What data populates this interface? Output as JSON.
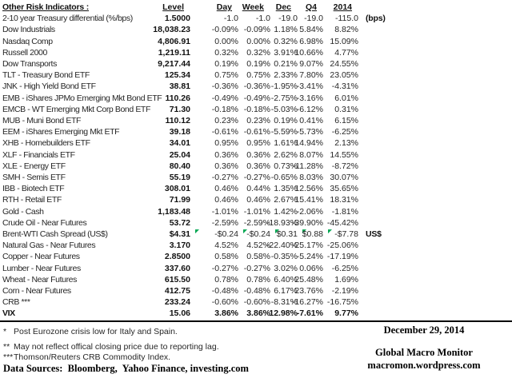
{
  "table": {
    "title": "Other Risk Indicators :",
    "columns": [
      "Level",
      "Day",
      "Week",
      "Dec",
      "Q4",
      "2014"
    ],
    "rows": [
      {
        "name": "2-10 year Treasury differential (%/bps)",
        "level": "1.5000",
        "day": "-1.0",
        "week": "-1.0",
        "dec": "-19.0",
        "q4": "-19.0",
        "y2014": "-115.0",
        "note": "(bps)",
        "bold": false,
        "markers": false
      },
      {
        "name": "Dow Industrials",
        "level": "18,038.23",
        "day": "-0.09%",
        "week": "-0.09%",
        "dec": "1.18%",
        "q4": "5.84%",
        "y2014": "8.82%",
        "note": "",
        "bold": false,
        "markers": false
      },
      {
        "name": "Nasdaq Comp",
        "level": "4,806.91",
        "day": "0.00%",
        "week": "0.00%",
        "dec": "0.32%",
        "q4": "6.98%",
        "y2014": "15.09%",
        "note": "",
        "bold": false,
        "markers": false
      },
      {
        "name": "Russell 2000",
        "level": "1,219.11",
        "day": "0.32%",
        "week": "0.32%",
        "dec": "3.91%",
        "q4": "10.66%",
        "y2014": "4.77%",
        "note": "",
        "bold": false,
        "markers": false
      },
      {
        "name": "Dow Transports",
        "level": "9,217.44",
        "day": "0.19%",
        "week": "0.19%",
        "dec": "0.21%",
        "q4": "9.07%",
        "y2014": "24.55%",
        "note": "",
        "bold": false,
        "markers": false
      },
      {
        "name": "TLT - Treasury Bond ETF",
        "level": "125.34",
        "day": "0.75%",
        "week": "0.75%",
        "dec": "2.33%",
        "q4": "7.80%",
        "y2014": "23.05%",
        "note": "",
        "bold": false,
        "markers": false
      },
      {
        "name": "JNK - High Yield Bond ETF",
        "level": "38.81",
        "day": "-0.36%",
        "week": "-0.36%",
        "dec": "-1.95%",
        "q4": "-3.41%",
        "y2014": "-4.31%",
        "note": "",
        "bold": false,
        "markers": false
      },
      {
        "name": "EMB - iShares JPMo Emerging Mkt Bond ETF",
        "level": "110.26",
        "day": "-0.49%",
        "week": "-0.49%",
        "dec": "-2.75%",
        "q4": "-3.16%",
        "y2014": "6.01%",
        "note": "",
        "bold": false,
        "markers": false
      },
      {
        "name": "EMCB - WT Emerging Mkt Corp Bond ETF",
        "level": "71.30",
        "day": "-0.18%",
        "week": "-0.18%",
        "dec": "-5.03%",
        "q4": "-6.12%",
        "y2014": "0.31%",
        "note": "",
        "bold": false,
        "markers": false
      },
      {
        "name": "MUB - Muni Bond ETF",
        "level": "110.12",
        "day": "0.23%",
        "week": "0.23%",
        "dec": "0.19%",
        "q4": "0.41%",
        "y2014": "6.15%",
        "note": "",
        "bold": false,
        "markers": false
      },
      {
        "name": "EEM - iShares Emerging Mkt ETF",
        "level": "39.18",
        "day": "-0.61%",
        "week": "-0.61%",
        "dec": "-5.59%",
        "q4": "-5.73%",
        "y2014": "-6.25%",
        "note": "",
        "bold": false,
        "markers": false
      },
      {
        "name": "XHB - Homebuilders ETF",
        "level": "34.01",
        "day": "0.95%",
        "week": "0.95%",
        "dec": "1.61%",
        "q4": "14.94%",
        "y2014": "2.13%",
        "note": "",
        "bold": false,
        "markers": false
      },
      {
        "name": "XLF - Financials ETF",
        "level": "25.04",
        "day": "0.36%",
        "week": "0.36%",
        "dec": "2.62%",
        "q4": "8.07%",
        "y2014": "14.55%",
        "note": "",
        "bold": false,
        "markers": false
      },
      {
        "name": "XLE - Energy ETF",
        "level": "80.40",
        "day": "0.36%",
        "week": "0.36%",
        "dec": "0.73%",
        "q4": "-11.28%",
        "y2014": "-8.72%",
        "note": "",
        "bold": false,
        "markers": false
      },
      {
        "name": "SMH - Semis ETF",
        "level": "55.19",
        "day": "-0.27%",
        "week": "-0.27%",
        "dec": "-0.65%",
        "q4": "8.03%",
        "y2014": "30.07%",
        "note": "",
        "bold": false,
        "markers": false
      },
      {
        "name": "IBB - Biotech ETF",
        "level": "308.01",
        "day": "0.46%",
        "week": "0.44%",
        "dec": "1.35%",
        "q4": "12.56%",
        "y2014": "35.65%",
        "note": "",
        "bold": false,
        "markers": false
      },
      {
        "name": "RTH - Retail ETF",
        "level": "71.99",
        "day": "0.46%",
        "week": "0.46%",
        "dec": "2.67%",
        "q4": "15.41%",
        "y2014": "18.31%",
        "note": "",
        "bold": false,
        "markers": false
      },
      {
        "name": "Gold - Cash",
        "level": "1,183.48",
        "day": "-1.01%",
        "week": "-1.01%",
        "dec": "1.42%",
        "q4": "-2.06%",
        "y2014": "-1.81%",
        "note": "",
        "bold": false,
        "markers": false
      },
      {
        "name": "Crude Oil - Near Futures",
        "level": "53.72",
        "day": "-2.59%",
        "week": "-2.59%",
        "dec": "-18.93%",
        "q4": "-39.90%",
        "y2014": "-45.42%",
        "note": "",
        "bold": false,
        "markers": false
      },
      {
        "name": "Brent-WTI Cash Spread (US$)",
        "level": "$4.31",
        "day": "-$0.24",
        "week": "-$0.24",
        "dec": "$0.31",
        "q4": "$0.88",
        "y2014": "-$7.78",
        "note": "US$",
        "bold": false,
        "markers": true
      },
      {
        "name": "Natural Gas - Near Futures",
        "level": "3.170",
        "day": "4.52%",
        "week": "4.52%",
        "dec": "-22.40%",
        "q4": "-25.17%",
        "y2014": "-25.06%",
        "note": "",
        "bold": false,
        "markers": false
      },
      {
        "name": "Copper - Near Futures",
        "level": "2.8500",
        "day": "0.58%",
        "week": "0.58%",
        "dec": "-0.35%",
        "q4": "-5.24%",
        "y2014": "-17.19%",
        "note": "",
        "bold": false,
        "markers": false
      },
      {
        "name": "Lumber - Near Futures",
        "level": "337.60",
        "day": "-0.27%",
        "week": "-0.27%",
        "dec": "3.02%",
        "q4": "0.06%",
        "y2014": "-6.25%",
        "note": "",
        "bold": false,
        "markers": false
      },
      {
        "name": "Wheat - Near Futures",
        "level": "615.50",
        "day": "0.78%",
        "week": "0.78%",
        "dec": "6.40%",
        "q4": "25.48%",
        "y2014": "1.69%",
        "note": "",
        "bold": false,
        "markers": false
      },
      {
        "name": "Corn - Near Futures",
        "level": "412.75",
        "day": "-0.48%",
        "week": "-0.48%",
        "dec": "6.17%",
        "q4": "23.76%",
        "y2014": "-2.19%",
        "note": "",
        "bold": false,
        "markers": false
      },
      {
        "name": "CRB ***",
        "level": "233.24",
        "day": "-0.60%",
        "week": "-0.60%",
        "dec": "-8.31%",
        "q4": "-16.27%",
        "y2014": "-16.75%",
        "note": "",
        "bold": false,
        "markers": false
      },
      {
        "name": "VIX",
        "level": "15.06",
        "day": "3.86%",
        "week": "3.86%",
        "dec": "12.98%",
        "q4": "-7.61%",
        "y2014": "9.77%",
        "note": "",
        "bold": true,
        "markers": false
      }
    ]
  },
  "footer": {
    "footnotes": [
      {
        "mark": "*",
        "text": "Post Eurozone crisis low for Italy and Spain."
      },
      {
        "mark": "**",
        "text": "May not reflect offical closing price due to reporting lag."
      },
      {
        "mark": "***",
        "text": "Thomson/Reuters CRB Commodity Index."
      }
    ],
    "data_sources": "Data Sources:  Bloomberg,  Yahoo Finance, investing.com",
    "date": "December 29, 2014",
    "brand": "Global Macro Monitor",
    "site": "macromon.wordpress.com"
  },
  "colors": {
    "title": "#17375E",
    "text": "#262626",
    "marker_green": "#00A651",
    "rule": "#000000"
  }
}
